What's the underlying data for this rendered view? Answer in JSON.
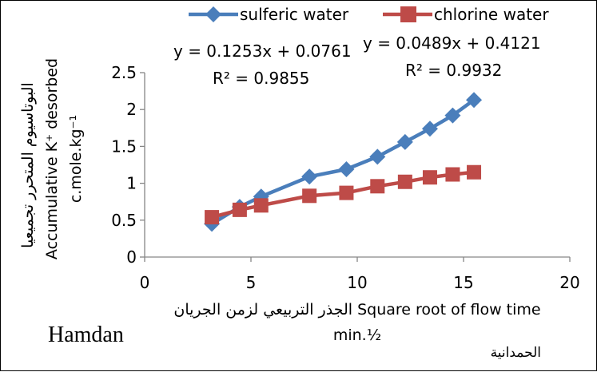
{
  "chart_data": {
    "type": "scatter",
    "xlabel_line1": "الجذر التربيعي لزمن الجريان Square root of flow time",
    "xlabel_line2": "min.½",
    "ylabel_line1": "البوتاسيوم المتحرر تجميعيا",
    "ylabel_line2": "Accumulative K⁺ desorbed",
    "ylabel_line3": "c.mole.kg⁻¹",
    "xlim": [
      0,
      20
    ],
    "ylim": [
      0,
      2.5
    ],
    "x_ticks": [
      "0",
      "5",
      "10",
      "15",
      "20"
    ],
    "y_ticks": [
      "0",
      "0.5",
      "1",
      "1.5",
      "2",
      "2.5"
    ],
    "grid": false,
    "legend_position": "top",
    "series": [
      {
        "name": "sulferic water",
        "color": "#4a7ebb",
        "marker": "diamond",
        "x": [
          3.16,
          4.47,
          5.48,
          7.75,
          9.49,
          10.95,
          12.25,
          13.42,
          14.49,
          15.49
        ],
        "y": [
          0.45,
          0.68,
          0.82,
          1.09,
          1.19,
          1.36,
          1.56,
          1.74,
          1.92,
          2.13
        ],
        "equation": "y = 0.1253x + 0.0761",
        "r2": "R² = 0.9855"
      },
      {
        "name": "chlorine water",
        "color": "#be4b48",
        "marker": "square",
        "x": [
          3.16,
          4.47,
          5.48,
          7.75,
          9.49,
          10.95,
          12.25,
          13.42,
          14.49,
          15.49
        ],
        "y": [
          0.54,
          0.64,
          0.7,
          0.83,
          0.87,
          0.96,
          1.02,
          1.08,
          1.12,
          1.15
        ],
        "equation": "y = 0.0489x + 0.4121",
        "r2": "R² = 0.9932"
      }
    ]
  },
  "footer": {
    "author_en": "Hamdan",
    "author_ar": "الحمدانية"
  }
}
